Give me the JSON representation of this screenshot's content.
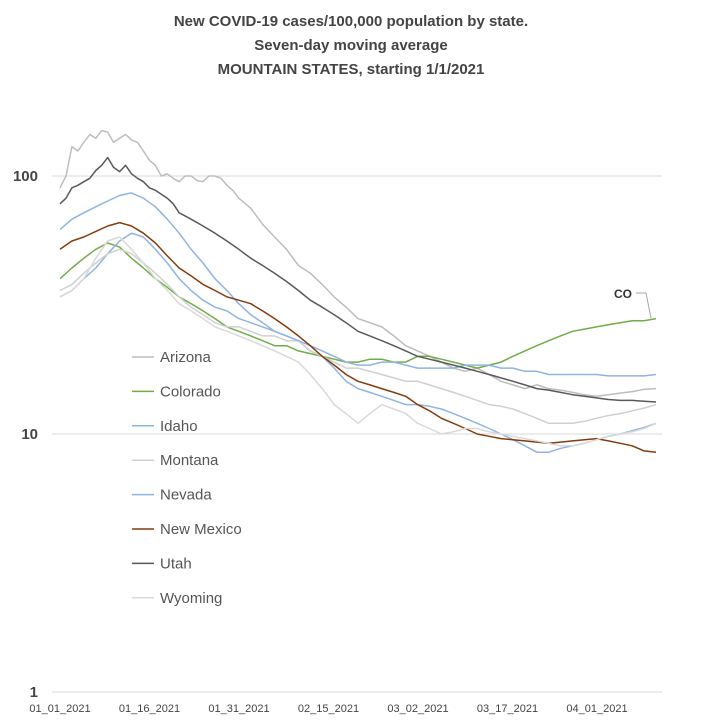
{
  "chart_data": {
    "type": "line",
    "title_lines": [
      "New COVID-19 cases/100,000 population by state.",
      "Seven-day moving average",
      "MOUNTAIN STATES, starting 1/1/2021"
    ],
    "y_scale": "log",
    "ylim": [
      1,
      200
    ],
    "y_ticks": [
      {
        "value": 100,
        "label": "100"
      },
      {
        "value": 10,
        "label": "10"
      },
      {
        "value": 1,
        "label": "1"
      }
    ],
    "x_ticks": [
      {
        "day": 0,
        "label": "01_01_2021"
      },
      {
        "day": 15,
        "label": "01_16_2021"
      },
      {
        "day": 30,
        "label": "01_31_2021"
      },
      {
        "day": 45,
        "label": "02_15_2021"
      },
      {
        "day": 60,
        "label": "03_02_2021"
      },
      {
        "day": 75,
        "label": "03_17_2021"
      },
      {
        "day": 90,
        "label": "04_01_2021"
      }
    ],
    "x_day_range": [
      0,
      100
    ],
    "legend_position": "left",
    "annotations": [
      {
        "text": "CO",
        "series": "Colorado"
      }
    ],
    "series": [
      {
        "name": "Arizona",
        "color": "#bdbdbd",
        "x": [
          0,
          1,
          2,
          3,
          4,
          5,
          6,
          7,
          8,
          9,
          10,
          11,
          12,
          13,
          14,
          15,
          16,
          17,
          18,
          19,
          20,
          21,
          22,
          23,
          24,
          25,
          26,
          27,
          28,
          29,
          30,
          32,
          34,
          36,
          38,
          40,
          42,
          44,
          46,
          48,
          50,
          52,
          54,
          56,
          58,
          60,
          62,
          64,
          66,
          68,
          70,
          72,
          74,
          76,
          78,
          80,
          82,
          84,
          86,
          88,
          90,
          92,
          94,
          96,
          98,
          100
        ],
        "y": [
          90,
          100,
          130,
          125,
          135,
          145,
          140,
          150,
          148,
          135,
          140,
          145,
          138,
          135,
          125,
          115,
          110,
          100,
          102,
          98,
          95,
          100,
          100,
          96,
          95,
          100,
          100,
          98,
          92,
          88,
          82,
          75,
          65,
          58,
          52,
          45,
          42,
          38,
          34,
          31,
          28,
          27,
          26,
          24,
          22,
          21,
          20,
          19,
          18,
          17.5,
          18,
          17,
          16,
          15.5,
          15,
          15.5,
          15,
          14.8,
          14.5,
          14.2,
          14,
          14.2,
          14.4,
          14.6,
          14.9,
          15
        ]
      },
      {
        "name": "Colorado",
        "color": "#70ad47",
        "x": [
          0,
          2,
          4,
          6,
          8,
          10,
          12,
          14,
          16,
          18,
          20,
          22,
          24,
          26,
          28,
          30,
          32,
          34,
          36,
          38,
          40,
          42,
          44,
          46,
          48,
          50,
          52,
          54,
          56,
          58,
          60,
          62,
          64,
          66,
          68,
          70,
          72,
          74,
          76,
          78,
          80,
          82,
          84,
          86,
          88,
          90,
          92,
          94,
          96,
          98,
          100
        ],
        "y": [
          40,
          44,
          48,
          52,
          55,
          53,
          48,
          44,
          40,
          37,
          34,
          32,
          30,
          28,
          26,
          25,
          24,
          23,
          22,
          22,
          21,
          20.5,
          20,
          19.5,
          19,
          19,
          19.5,
          19.5,
          19,
          19,
          20,
          20,
          19.5,
          19,
          18.5,
          18,
          18.5,
          19,
          20,
          21,
          22,
          23,
          24,
          25,
          25.5,
          26,
          26.5,
          27,
          27.5,
          27.5,
          28
        ]
      },
      {
        "name": "Idaho",
        "color": "#8eb4e3",
        "x": [
          0,
          2,
          4,
          6,
          8,
          10,
          12,
          14,
          16,
          18,
          20,
          22,
          24,
          26,
          28,
          30,
          32,
          34,
          36,
          38,
          40,
          42,
          44,
          46,
          48,
          50,
          52,
          54,
          56,
          58,
          60,
          62,
          64,
          66,
          68,
          70,
          72,
          74,
          76,
          78,
          80,
          82,
          84,
          86,
          88,
          90,
          92,
          94,
          96,
          98,
          100
        ],
        "y": [
          34,
          36,
          40,
          44,
          50,
          56,
          60,
          58,
          52,
          46,
          40,
          36,
          33,
          31,
          30,
          28,
          27,
          26,
          25,
          24,
          23,
          21,
          20,
          18,
          16,
          15,
          14.5,
          14,
          13.5,
          13,
          13,
          12.8,
          12.5,
          12,
          11.5,
          11,
          10.5,
          10,
          9.5,
          9,
          8.5,
          8.5,
          8.8,
          9,
          9.2,
          9.5,
          9.8,
          10,
          10.3,
          10.6,
          11
        ]
      },
      {
        "name": "Montana",
        "color": "#d0d0d0",
        "x": [
          0,
          2,
          4,
          6,
          8,
          10,
          12,
          14,
          16,
          18,
          20,
          22,
          24,
          26,
          28,
          30,
          32,
          34,
          36,
          38,
          40,
          42,
          44,
          46,
          48,
          50,
          52,
          54,
          56,
          58,
          60,
          62,
          64,
          66,
          68,
          70,
          72,
          74,
          76,
          78,
          80,
          82,
          84,
          86,
          88,
          90,
          92,
          94,
          96,
          98,
          100
        ],
        "y": [
          36,
          38,
          42,
          46,
          50,
          52,
          50,
          46,
          42,
          38,
          34,
          31,
          29,
          27,
          26,
          26,
          25,
          24,
          24,
          23,
          23,
          21,
          20,
          19,
          18,
          18,
          17.5,
          17,
          16.5,
          16,
          16,
          15.5,
          15,
          14.5,
          14,
          13.5,
          13,
          12.8,
          12.5,
          12,
          11.5,
          11,
          11,
          11,
          11.2,
          11.5,
          11.8,
          12,
          12.3,
          12.6,
          13
        ]
      },
      {
        "name": "Nevada",
        "color": "#8eb4e3",
        "x": [
          0,
          2,
          4,
          6,
          8,
          10,
          12,
          14,
          16,
          18,
          20,
          22,
          24,
          26,
          28,
          30,
          32,
          34,
          36,
          38,
          40,
          42,
          44,
          46,
          48,
          50,
          52,
          54,
          56,
          58,
          60,
          62,
          64,
          66,
          68,
          70,
          72,
          74,
          76,
          78,
          80,
          82,
          84,
          86,
          88,
          90,
          92,
          94,
          96,
          98,
          100
        ],
        "y": [
          62,
          68,
          72,
          76,
          80,
          84,
          86,
          82,
          76,
          68,
          60,
          52,
          46,
          40,
          36,
          32,
          29,
          27,
          25,
          24,
          23,
          22,
          21,
          20,
          19,
          18.5,
          18.5,
          19,
          19,
          18.5,
          18,
          18,
          18,
          18,
          18.5,
          18.5,
          18.5,
          18,
          18,
          17.5,
          17.5,
          17,
          17,
          17,
          17,
          17,
          16.8,
          16.8,
          16.8,
          16.8,
          17
        ]
      },
      {
        "name": "New Mexico",
        "color": "#843c0c",
        "x": [
          0,
          2,
          4,
          6,
          8,
          10,
          12,
          14,
          16,
          18,
          20,
          22,
          24,
          26,
          28,
          30,
          32,
          34,
          36,
          38,
          40,
          42,
          44,
          46,
          48,
          50,
          52,
          54,
          56,
          58,
          60,
          62,
          64,
          66,
          68,
          70,
          72,
          74,
          76,
          78,
          80,
          82,
          84,
          86,
          88,
          90,
          92,
          94,
          96,
          98,
          100
        ],
        "y": [
          52,
          56,
          58,
          61,
          64,
          66,
          64,
          60,
          55,
          49,
          44,
          41,
          38,
          36,
          34,
          33,
          32,
          30,
          28,
          26,
          24,
          22,
          20,
          18.5,
          17,
          16,
          15.5,
          15,
          14.5,
          14,
          13,
          12.3,
          11.5,
          11,
          10.5,
          10,
          9.8,
          9.6,
          9.5,
          9.4,
          9.3,
          9.2,
          9.3,
          9.4,
          9.5,
          9.6,
          9.4,
          9.2,
          9,
          8.6,
          8.5
        ]
      },
      {
        "name": "Utah",
        "color": "#595959",
        "x": [
          0,
          1,
          2,
          3,
          4,
          5,
          6,
          7,
          8,
          9,
          10,
          11,
          12,
          13,
          14,
          15,
          16,
          17,
          18,
          19,
          20,
          22,
          24,
          26,
          28,
          30,
          32,
          34,
          36,
          38,
          40,
          42,
          44,
          46,
          48,
          50,
          52,
          54,
          56,
          58,
          60,
          62,
          64,
          66,
          68,
          70,
          72,
          74,
          76,
          78,
          80,
          82,
          84,
          86,
          88,
          90,
          92,
          94,
          96,
          98,
          100
        ],
        "y": [
          78,
          82,
          90,
          92,
          95,
          98,
          105,
          110,
          118,
          108,
          104,
          110,
          102,
          98,
          95,
          90,
          88,
          85,
          82,
          78,
          72,
          68,
          64,
          60,
          56,
          52,
          48,
          45,
          42,
          39,
          36,
          33,
          31,
          29,
          27,
          25,
          24,
          23,
          22,
          21,
          20,
          19.5,
          19,
          18.5,
          18,
          17.5,
          17,
          16.5,
          16,
          15.5,
          15,
          14.8,
          14.5,
          14.2,
          14,
          13.8,
          13.6,
          13.5,
          13.5,
          13.4,
          13.3
        ]
      },
      {
        "name": "Wyoming",
        "color": "#d9d9d9",
        "x": [
          0,
          2,
          4,
          6,
          8,
          10,
          12,
          14,
          16,
          18,
          20,
          22,
          24,
          26,
          28,
          30,
          32,
          34,
          36,
          38,
          40,
          42,
          44,
          46,
          48,
          50,
          52,
          54,
          56,
          58,
          60,
          62,
          64,
          66,
          68,
          70,
          72,
          74,
          76,
          78,
          80,
          82,
          84,
          86,
          88,
          90,
          92,
          94,
          96,
          98,
          100
        ],
        "y": [
          34,
          36,
          40,
          48,
          56,
          58,
          52,
          46,
          40,
          36,
          32,
          30,
          28,
          26,
          25,
          24,
          23,
          22,
          21,
          20,
          19,
          17,
          15,
          13,
          12,
          11,
          12,
          13,
          12.5,
          12,
          11,
          10.5,
          10,
          10.2,
          10.5,
          10.5,
          10.2,
          10,
          9.8,
          9.6,
          9.4,
          9.2,
          9,
          9,
          9.2,
          9.5,
          9.8,
          10,
          10.2,
          10.5,
          11
        ]
      }
    ]
  }
}
